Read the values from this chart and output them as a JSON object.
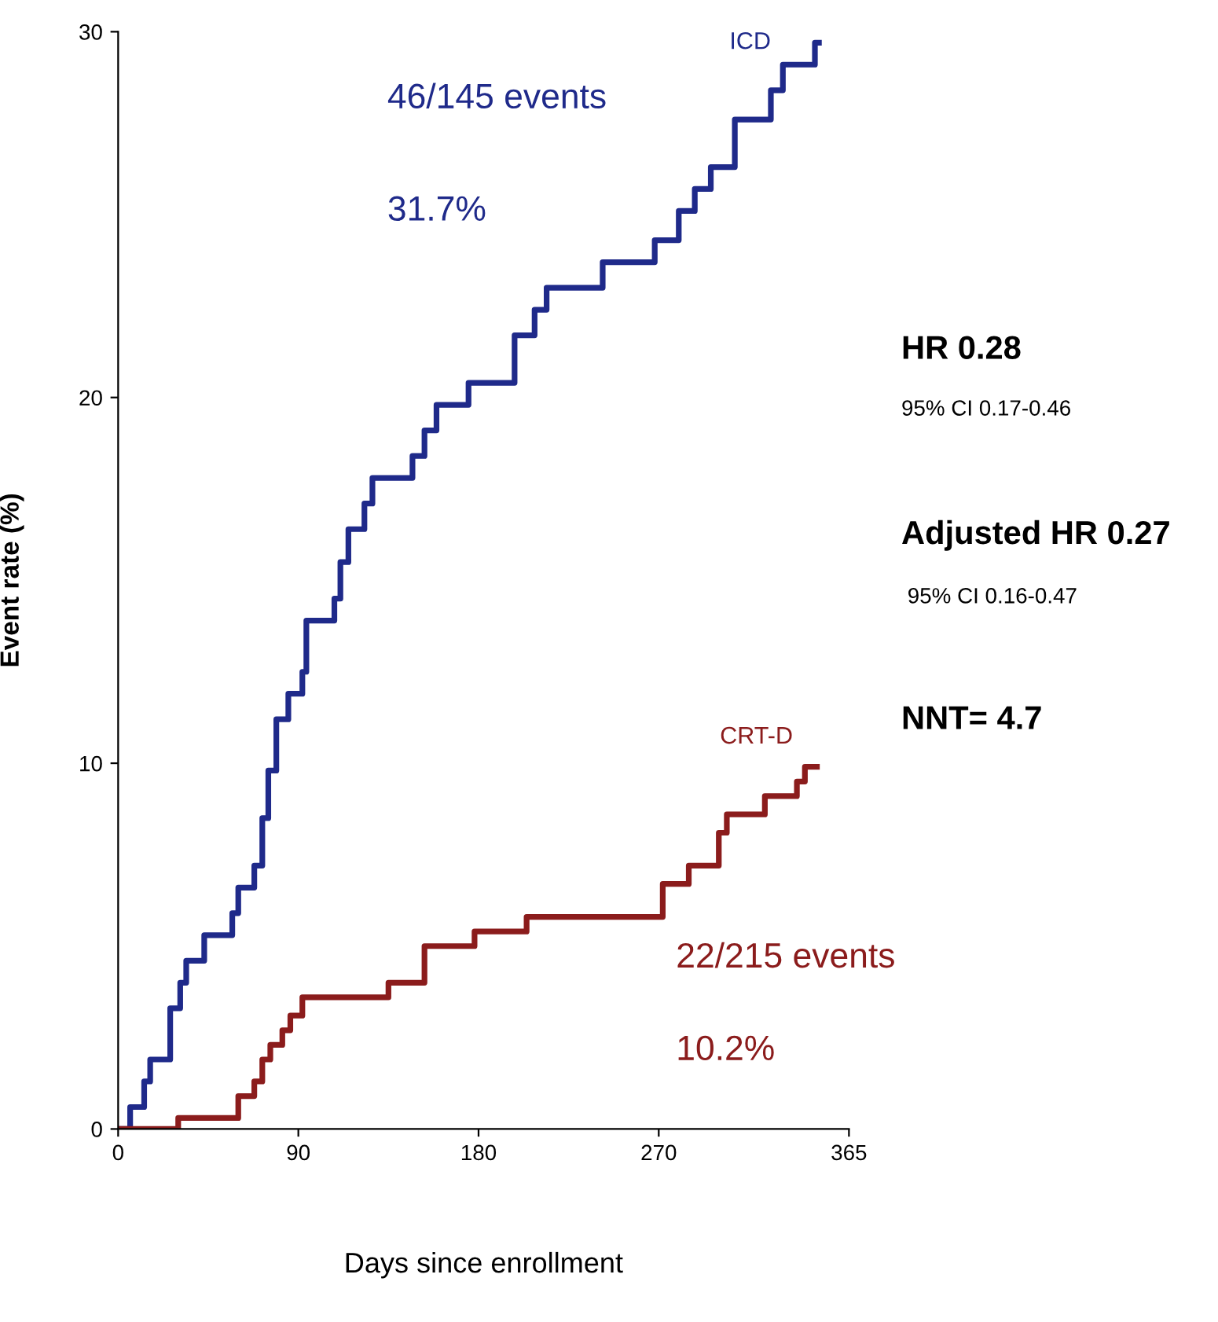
{
  "chart_data": {
    "type": "step",
    "xlabel": "Days since enrollment",
    "ylabel": "Event rate (%)",
    "xlim": [
      0,
      365
    ],
    "xticks": [
      0,
      90,
      180,
      270,
      365
    ],
    "ylim": [
      0,
      30
    ],
    "yticks": [
      0,
      10,
      20,
      30
    ],
    "grid": false,
    "legend": false,
    "line_style": "solid",
    "marker": "none",
    "series": [
      {
        "name": "ICD",
        "color": "#1f2a8a",
        "x": [
          0,
          6,
          13,
          16,
          26,
          31,
          34,
          43,
          57,
          60,
          68,
          72,
          75,
          79,
          85,
          92,
          94,
          108,
          111,
          115,
          123,
          127,
          147,
          153,
          159,
          175,
          198,
          208,
          214,
          242,
          268,
          280,
          288,
          296,
          308,
          326,
          332,
          348,
          350
        ],
        "values": [
          0,
          0.6,
          1.3,
          1.9,
          3.3,
          4.0,
          4.6,
          5.3,
          5.9,
          6.6,
          7.2,
          8.5,
          9.8,
          11.2,
          11.9,
          12.5,
          13.9,
          14.5,
          15.5,
          16.4,
          17.1,
          17.8,
          18.4,
          19.1,
          19.8,
          20.4,
          21.7,
          22.4,
          23.0,
          23.7,
          24.3,
          25.1,
          25.7,
          26.3,
          27.6,
          28.4,
          29.1,
          29.7,
          29.7
        ]
      },
      {
        "name": "CRT-D",
        "color": "#8b1c1c",
        "x": [
          0,
          30,
          60,
          68,
          72,
          76,
          82,
          86,
          92,
          135,
          153,
          178,
          204,
          272,
          285,
          300,
          304,
          323,
          339,
          343,
          349
        ],
        "values": [
          0,
          0.3,
          0.9,
          1.3,
          1.9,
          2.3,
          2.7,
          3.1,
          3.6,
          4.0,
          5.0,
          5.4,
          5.8,
          6.7,
          7.2,
          8.1,
          8.6,
          9.1,
          9.5,
          9.9,
          9.9
        ]
      }
    ],
    "annotations": [
      "46/145 events",
      "31.7%",
      "22/215 events",
      "10.2%",
      "HR 0.28",
      "95% CI 0.17-0.46",
      "Adjusted HR 0.27",
      "95% CI 0.16-0.47",
      "NNT= 4.7"
    ]
  }
}
